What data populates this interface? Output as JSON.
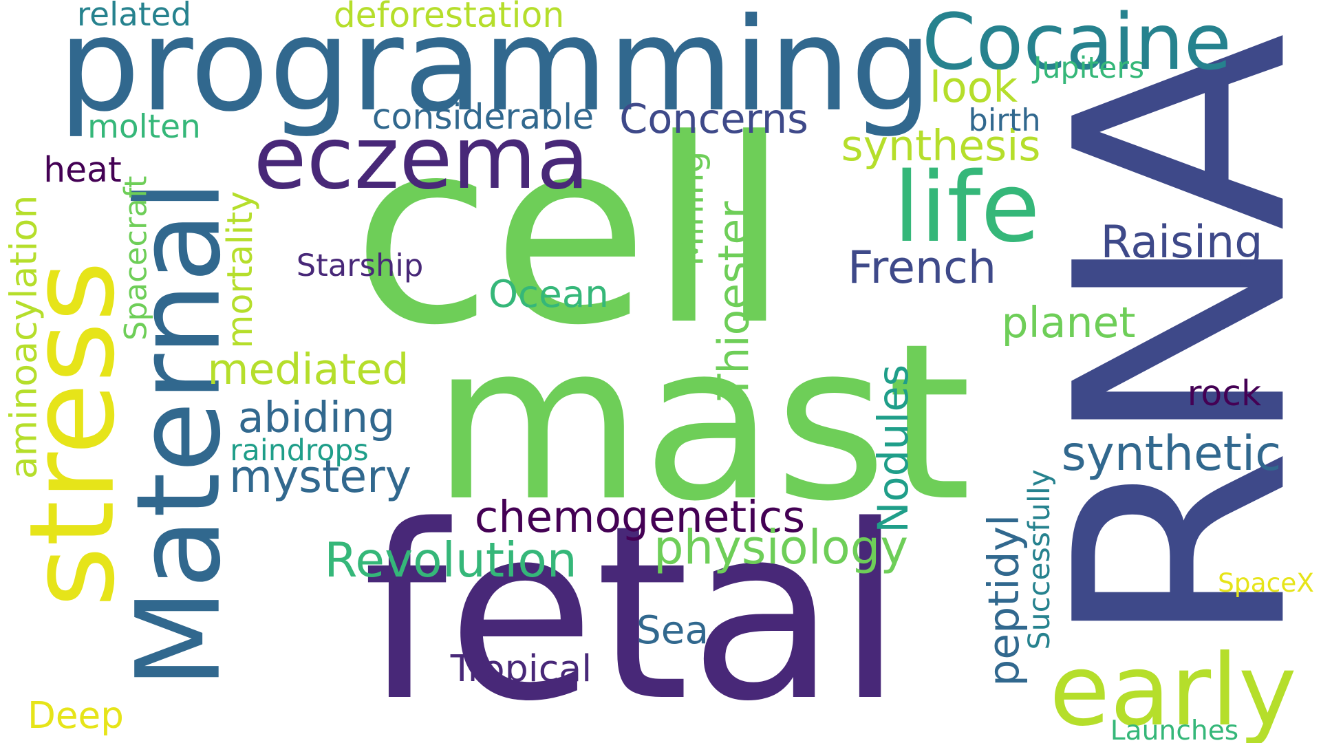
{
  "palette": {
    "dark_purple": "#440154",
    "indigo": "#482878",
    "deep_blue": "#3e4989",
    "blue": "#31688e",
    "teal_blue": "#26828e",
    "teal": "#1f9e89",
    "green_teal": "#35b779",
    "green": "#6ece58",
    "lime": "#b5de2b",
    "yellow": "#fde725"
  },
  "words": [
    {
      "id": "rna",
      "text": "RNA",
      "color": "#3e4989"
    },
    {
      "id": "fetal",
      "text": "fetal",
      "color": "#482878"
    },
    {
      "id": "mast",
      "text": "mast",
      "color": "#6ece58"
    },
    {
      "id": "cell",
      "text": "cell",
      "color": "#6ece58"
    },
    {
      "id": "programming",
      "text": "programming",
      "color": "#31688e"
    },
    {
      "id": "maternal",
      "text": "Maternal",
      "color": "#31688e"
    },
    {
      "id": "stress",
      "text": "stress",
      "color": "#e6e419"
    },
    {
      "id": "eczema",
      "text": "eczema",
      "color": "#482878"
    },
    {
      "id": "cocaine",
      "text": "Cocaine",
      "color": "#26828e"
    },
    {
      "id": "life",
      "text": "life",
      "color": "#35b779"
    },
    {
      "id": "early",
      "text": "early",
      "color": "#b5de2b"
    },
    {
      "id": "aminoacylation",
      "text": "aminoacylation",
      "color": "#b5de2b"
    },
    {
      "id": "chemogenetics",
      "text": "chemogenetics",
      "color": "#440154"
    },
    {
      "id": "synthetic",
      "text": "synthetic",
      "color": "#31688e"
    },
    {
      "id": "physiology",
      "text": "physiology",
      "color": "#6ece58"
    },
    {
      "id": "revolution",
      "text": "Revolution",
      "color": "#35b779"
    },
    {
      "id": "concerns",
      "text": "Concerns",
      "color": "#3e4989"
    },
    {
      "id": "raising",
      "text": "Raising",
      "color": "#3e4989"
    },
    {
      "id": "french",
      "text": "French",
      "color": "#3e4989"
    },
    {
      "id": "mediated",
      "text": "mediated",
      "color": "#b5de2b"
    },
    {
      "id": "abiding",
      "text": "abiding",
      "color": "#31688e"
    },
    {
      "id": "mystery",
      "text": "mystery",
      "color": "#31688e"
    },
    {
      "id": "synthesis",
      "text": "synthesis",
      "color": "#b5de2b"
    },
    {
      "id": "thioester",
      "text": "Thioester",
      "color": "#6ece58"
    },
    {
      "id": "nodules",
      "text": "Nodules",
      "color": "#1f9e89"
    },
    {
      "id": "peptidyl",
      "text": "peptidyl",
      "color": "#31688e"
    },
    {
      "id": "planet",
      "text": "planet",
      "color": "#6ece58"
    },
    {
      "id": "ocean",
      "text": "Ocean",
      "color": "#35b779"
    },
    {
      "id": "look",
      "text": "look",
      "color": "#b5de2b"
    },
    {
      "id": "considerable",
      "text": "considerable",
      "color": "#31688e"
    },
    {
      "id": "mining",
      "text": "Mining",
      "color": "#6ece58"
    },
    {
      "id": "deforestation",
      "text": "deforestation",
      "color": "#b5de2b"
    },
    {
      "id": "sea",
      "text": "Sea",
      "color": "#31688e"
    },
    {
      "id": "tropical",
      "text": "Tropical",
      "color": "#482878"
    },
    {
      "id": "deep",
      "text": "Deep",
      "color": "#e6e419"
    },
    {
      "id": "rock",
      "text": "rock",
      "color": "#440154"
    },
    {
      "id": "related",
      "text": "related",
      "color": "#26828e"
    },
    {
      "id": "molten",
      "text": "molten",
      "color": "#35b779"
    },
    {
      "id": "heat",
      "text": "heat",
      "color": "#440154"
    },
    {
      "id": "starship",
      "text": "Starship",
      "color": "#482878"
    },
    {
      "id": "spacecraft",
      "text": "Spacecraft",
      "color": "#6ece58"
    },
    {
      "id": "mortality",
      "text": "mortality",
      "color": "#b5de2b"
    },
    {
      "id": "raindrops",
      "text": "raindrops",
      "color": "#1f9e89"
    },
    {
      "id": "birth",
      "text": "birth",
      "color": "#31688e"
    },
    {
      "id": "jupiters",
      "text": "Jupiters",
      "color": "#35b779"
    },
    {
      "id": "successfully",
      "text": "Successfully",
      "color": "#26828e"
    },
    {
      "id": "spacex",
      "text": "SpaceX",
      "color": "#e6e419"
    },
    {
      "id": "launches",
      "text": "Launches",
      "color": "#35b779"
    }
  ]
}
